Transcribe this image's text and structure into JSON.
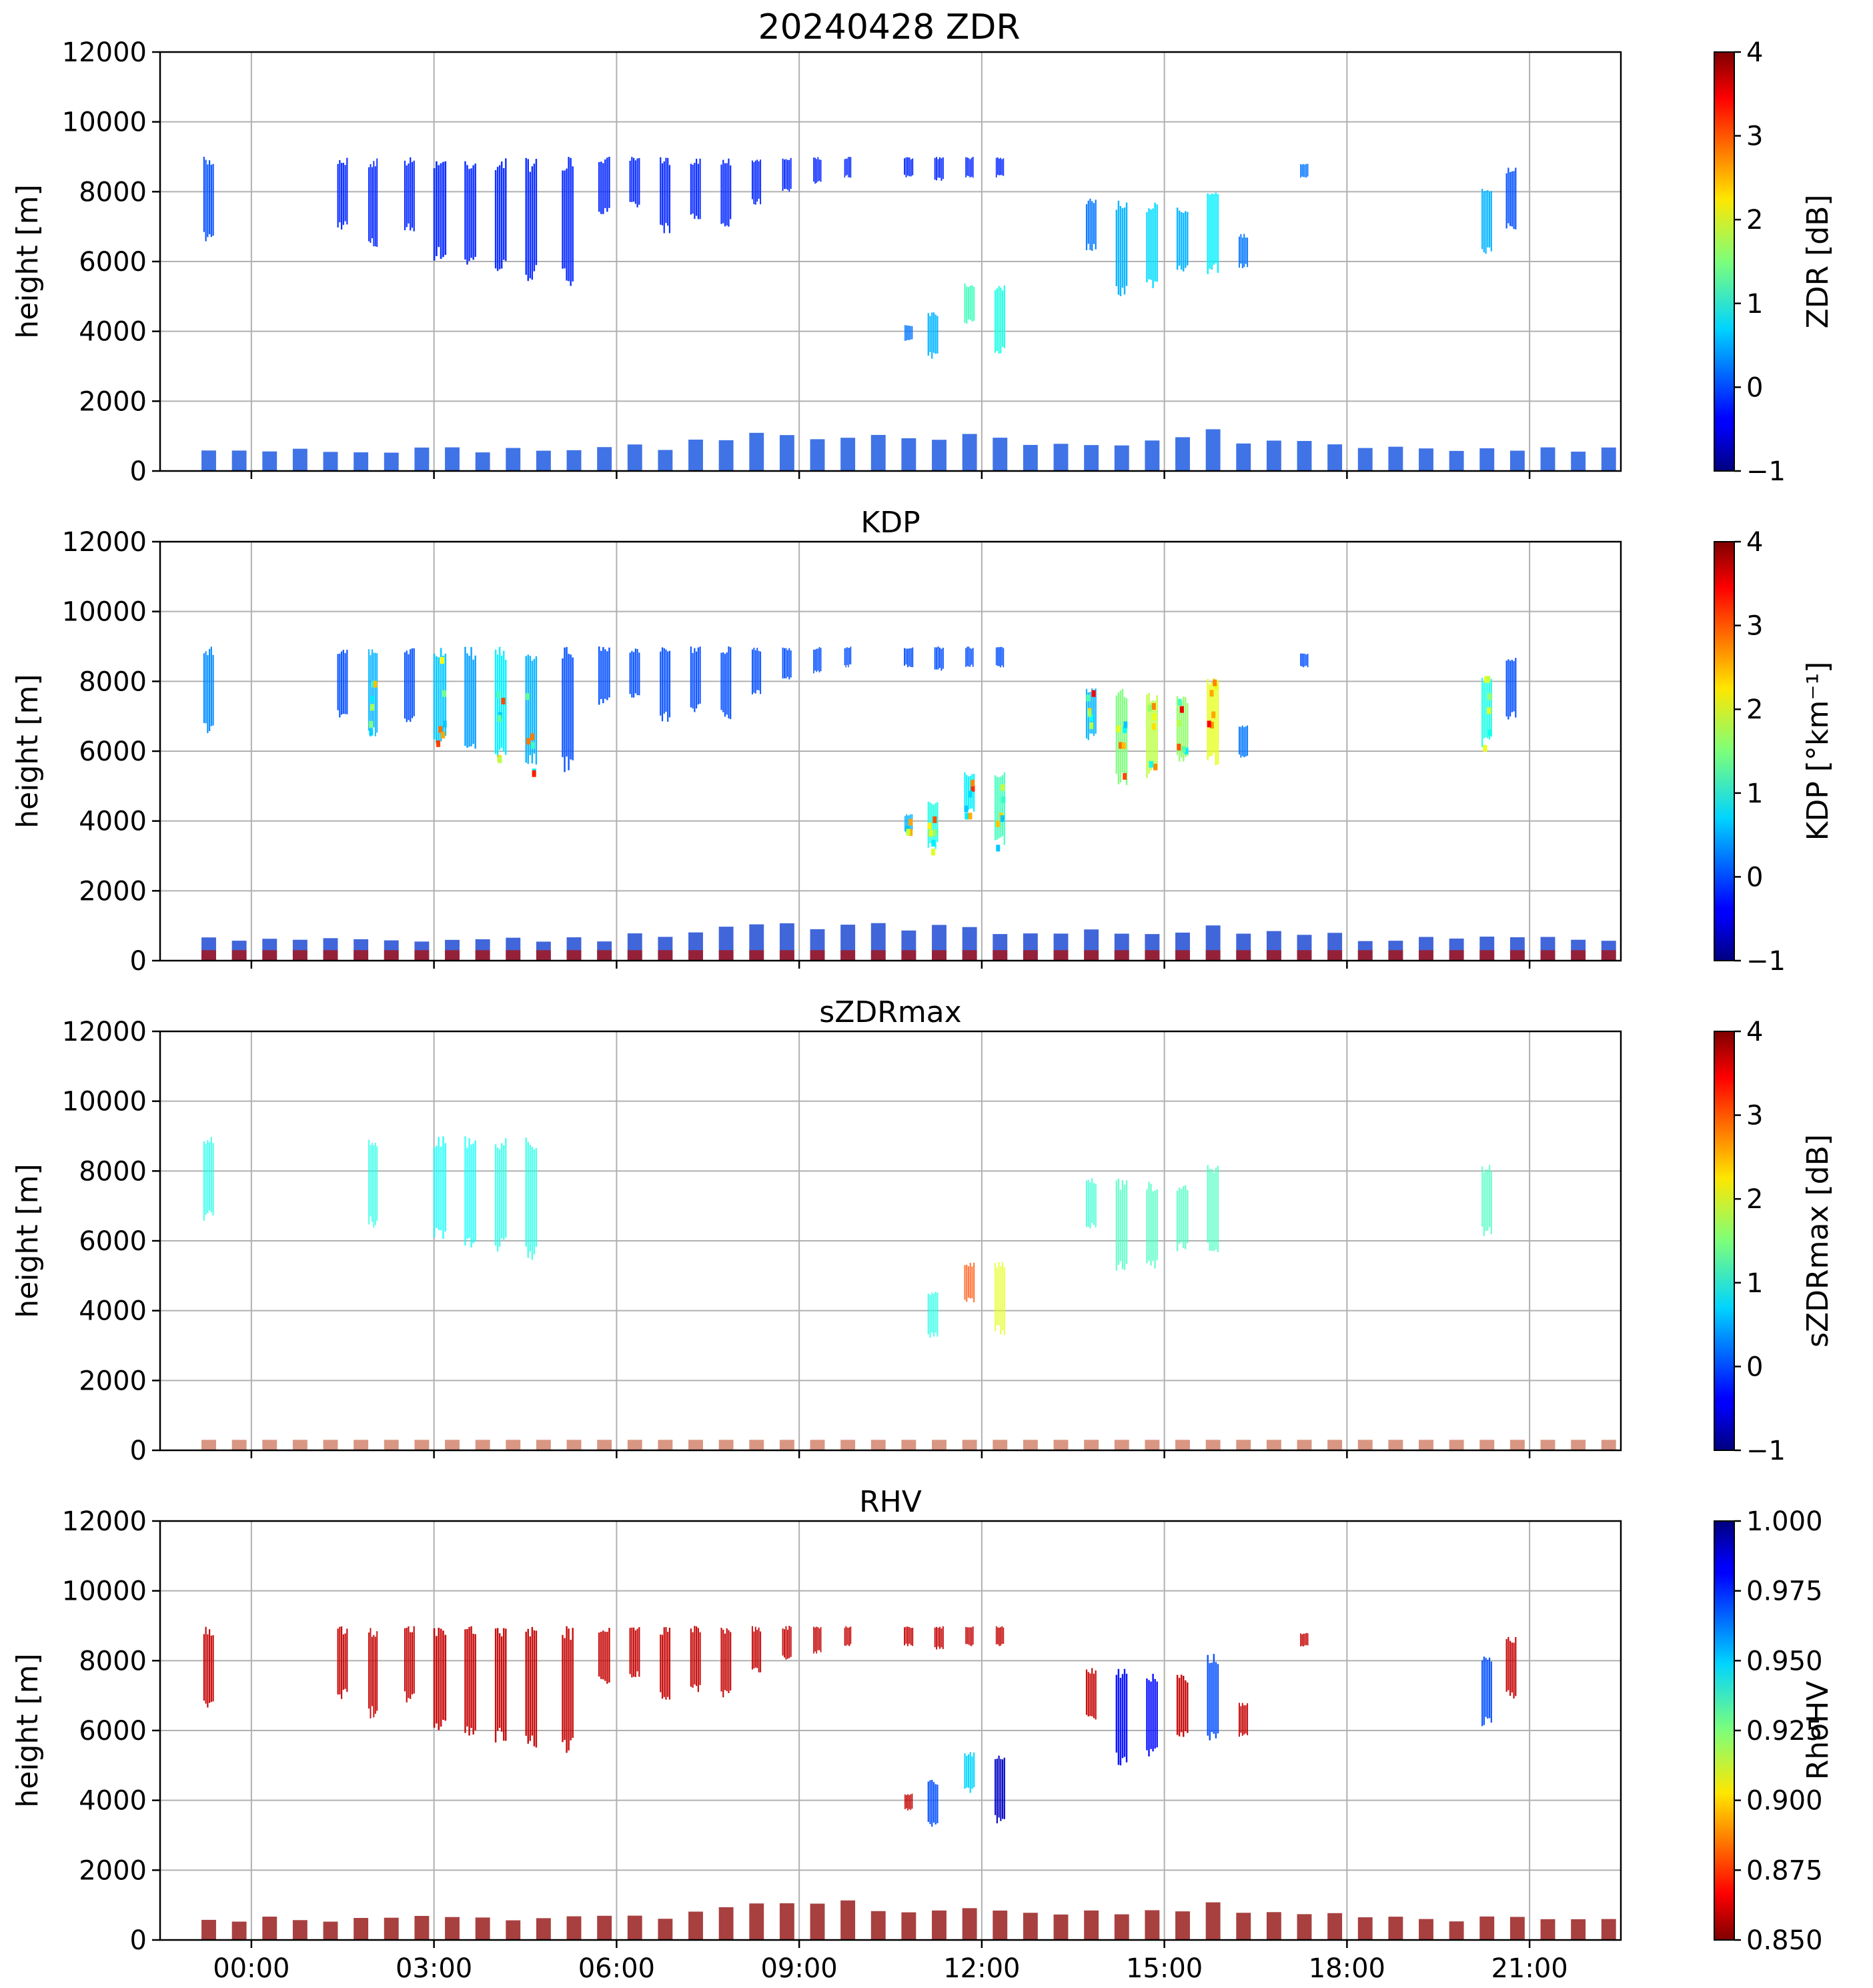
{
  "chart_data": {
    "type": "heatmap",
    "figure_title": "20240428 ZDR",
    "shared_x": {
      "unit": "hours",
      "range": [
        -1.5,
        22.5
      ],
      "ticks": [
        0,
        3,
        6,
        9,
        12,
        15,
        18,
        21
      ],
      "tick_labels": [
        "00:00",
        "03:00",
        "06:00",
        "09:00",
        "12:00",
        "15:00",
        "18:00",
        "21:00"
      ]
    },
    "panels": [
      {
        "key": "zdr",
        "title": "",
        "ylabel": "height [m]",
        "ylim": [
          0,
          12000
        ],
        "yticks": [
          0,
          2000,
          4000,
          6000,
          8000,
          10000,
          12000
        ],
        "ytick_labels": [
          "0",
          "2000",
          "4000",
          "6000",
          "8000",
          "10000",
          "12000"
        ],
        "colorbar": {
          "label": "ZDR [dB]",
          "range": [
            -1,
            4
          ],
          "ticks": [
            -1,
            0,
            1,
            2,
            3,
            4
          ],
          "tick_labels": [
            "−1",
            "0",
            "1",
            "2",
            "3",
            "4"
          ],
          "cmap": "jet"
        }
      },
      {
        "key": "kdp",
        "title": "KDP",
        "ylabel": "height [m]",
        "ylim": [
          0,
          12000
        ],
        "yticks": [
          0,
          2000,
          4000,
          6000,
          8000,
          10000,
          12000
        ],
        "ytick_labels": [
          "0",
          "2000",
          "4000",
          "6000",
          "8000",
          "10000",
          "12000"
        ],
        "colorbar": {
          "label": "KDP [°km⁻¹]",
          "range": [
            -1,
            4
          ],
          "ticks": [
            -1,
            0,
            1,
            2,
            3,
            4
          ],
          "tick_labels": [
            "−1",
            "0",
            "1",
            "2",
            "3",
            "4"
          ],
          "cmap": "jet"
        }
      },
      {
        "key": "szdrmax",
        "title": "sZDRmax",
        "ylabel": "height [m]",
        "ylim": [
          0,
          12000
        ],
        "yticks": [
          0,
          2000,
          4000,
          6000,
          8000,
          10000,
          12000
        ],
        "ytick_labels": [
          "0",
          "2000",
          "4000",
          "6000",
          "8000",
          "10000",
          "12000"
        ],
        "colorbar": {
          "label": "sZDRmax [dB]",
          "range": [
            -1,
            4
          ],
          "ticks": [
            -1,
            0,
            1,
            2,
            3,
            4
          ],
          "tick_labels": [
            "−1",
            "0",
            "1",
            "2",
            "3",
            "4"
          ],
          "cmap": "jet"
        }
      },
      {
        "key": "rhv",
        "title": "RHV",
        "ylabel": "height [m]",
        "ylim": [
          0,
          12000
        ],
        "yticks": [
          0,
          2000,
          4000,
          6000,
          8000,
          10000,
          12000
        ],
        "ytick_labels": [
          "0",
          "2000",
          "4000",
          "6000",
          "8000",
          "10000",
          "12000"
        ],
        "colorbar": {
          "label": "RhoHV",
          "range": [
            0.85,
            1.0
          ],
          "ticks": [
            0.85,
            0.875,
            0.9,
            0.925,
            0.95,
            0.975,
            1.0
          ],
          "tick_labels": [
            "0.850",
            "0.875",
            "0.900",
            "0.925",
            "0.950",
            "0.975",
            "1.000"
          ],
          "cmap": "jet_r"
        }
      }
    ],
    "upper_echoes": [
      {
        "t": -0.7,
        "w": 0.18,
        "top": 9000,
        "base": 6500,
        "zdr": 0.0,
        "kdp": 0.3,
        "sz": 1.0,
        "rhv": 0.86
      },
      {
        "t": 1.5,
        "w": 0.18,
        "top": 9000,
        "base": 6900,
        "zdr": -0.2,
        "kdp": 0.0,
        "sz": null,
        "rhv": 0.86
      },
      {
        "t": 2.0,
        "w": 0.16,
        "top": 9000,
        "base": 6300,
        "zdr": -0.2,
        "kdp": 0.5,
        "sz": 1.0,
        "rhv": 0.86
      },
      {
        "t": 2.6,
        "w": 0.18,
        "top": 9000,
        "base": 6800,
        "zdr": -0.2,
        "kdp": 0.0,
        "sz": null,
        "rhv": 0.86
      },
      {
        "t": 3.1,
        "w": 0.22,
        "top": 9000,
        "base": 6000,
        "zdr": -0.2,
        "kdp": 0.6,
        "sz": 0.9,
        "rhv": 0.86
      },
      {
        "t": 3.6,
        "w": 0.2,
        "top": 9000,
        "base": 5800,
        "zdr": -0.2,
        "kdp": 0.4,
        "sz": 0.9,
        "rhv": 0.86
      },
      {
        "t": 4.1,
        "w": 0.2,
        "top": 9000,
        "base": 5600,
        "zdr": -0.2,
        "kdp": 0.8,
        "sz": 1.0,
        "rhv": 0.86
      },
      {
        "t": 4.6,
        "w": 0.2,
        "top": 9000,
        "base": 5400,
        "zdr": -0.2,
        "kdp": 0.5,
        "sz": 1.0,
        "rhv": 0.86
      },
      {
        "t": 5.2,
        "w": 0.2,
        "top": 9000,
        "base": 5300,
        "zdr": -0.2,
        "kdp": 0.0,
        "sz": null,
        "rhv": 0.86
      },
      {
        "t": 5.8,
        "w": 0.2,
        "top": 9000,
        "base": 7300,
        "zdr": -0.2,
        "kdp": 0.0,
        "sz": null,
        "rhv": 0.86
      },
      {
        "t": 6.3,
        "w": 0.18,
        "top": 9000,
        "base": 7500,
        "zdr": -0.2,
        "kdp": 0.0,
        "sz": null,
        "rhv": 0.86
      },
      {
        "t": 6.8,
        "w": 0.18,
        "top": 9000,
        "base": 6800,
        "zdr": -0.2,
        "kdp": 0.0,
        "sz": null,
        "rhv": 0.86
      },
      {
        "t": 7.3,
        "w": 0.18,
        "top": 9000,
        "base": 7100,
        "zdr": -0.2,
        "kdp": 0.0,
        "sz": null,
        "rhv": 0.86
      },
      {
        "t": 7.8,
        "w": 0.18,
        "top": 9000,
        "base": 6900,
        "zdr": -0.2,
        "kdp": 0.0,
        "sz": null,
        "rhv": 0.86
      },
      {
        "t": 8.3,
        "w": 0.16,
        "top": 9000,
        "base": 7600,
        "zdr": -0.2,
        "kdp": 0.0,
        "sz": null,
        "rhv": 0.86
      },
      {
        "t": 8.8,
        "w": 0.16,
        "top": 9000,
        "base": 8000,
        "zdr": -0.2,
        "kdp": 0.0,
        "sz": null,
        "rhv": 0.86
      },
      {
        "t": 9.3,
        "w": 0.14,
        "top": 9000,
        "base": 8200,
        "zdr": -0.2,
        "kdp": 0.0,
        "sz": null,
        "rhv": 0.86
      },
      {
        "t": 9.8,
        "w": 0.12,
        "top": 9000,
        "base": 8400,
        "zdr": -0.2,
        "kdp": 0.0,
        "sz": null,
        "rhv": 0.86
      },
      {
        "t": 10.8,
        "w": 0.16,
        "top": 9000,
        "base": 8400,
        "zdr": -0.2,
        "kdp": 0.0,
        "sz": null,
        "rhv": 0.86
      },
      {
        "t": 11.3,
        "w": 0.16,
        "top": 9000,
        "base": 8300,
        "zdr": -0.2,
        "kdp": 0.0,
        "sz": null,
        "rhv": 0.86
      },
      {
        "t": 11.8,
        "w": 0.14,
        "top": 9000,
        "base": 8400,
        "zdr": -0.2,
        "kdp": 0.0,
        "sz": null,
        "rhv": 0.86
      },
      {
        "t": 12.3,
        "w": 0.14,
        "top": 9000,
        "base": 8400,
        "zdr": -0.2,
        "kdp": 0.0,
        "sz": null,
        "rhv": 0.86
      },
      {
        "t": 10.8,
        "w": 0.14,
        "top": 4200,
        "base": 3700,
        "zdr": 0.2,
        "kdp": 0.5,
        "sz": null,
        "rhv": 0.86
      },
      {
        "t": 11.2,
        "w": 0.18,
        "top": 4600,
        "base": 3200,
        "zdr": 0.5,
        "kdp": 1.0,
        "sz": 1.0,
        "rhv": 0.97
      },
      {
        "t": 11.8,
        "w": 0.18,
        "top": 5400,
        "base": 4200,
        "zdr": 1.2,
        "kdp": 0.8,
        "sz": 3.0,
        "rhv": 0.95
      },
      {
        "t": 12.3,
        "w": 0.18,
        "top": 5400,
        "base": 3300,
        "zdr": 1.0,
        "kdp": 1.2,
        "sz": 2.0,
        "rhv": 0.99
      },
      {
        "t": 13.8,
        "w": 0.18,
        "top": 7800,
        "base": 6300,
        "zdr": 0.2,
        "kdp": 0.5,
        "sz": 1.1,
        "rhv": 0.86
      },
      {
        "t": 14.3,
        "w": 0.2,
        "top": 7800,
        "base": 5000,
        "zdr": 0.5,
        "kdp": 1.5,
        "sz": 1.2,
        "rhv": 0.98
      },
      {
        "t": 14.8,
        "w": 0.2,
        "top": 7700,
        "base": 5200,
        "zdr": 0.7,
        "kdp": 1.8,
        "sz": 1.2,
        "rhv": 0.98
      },
      {
        "t": 15.3,
        "w": 0.2,
        "top": 7600,
        "base": 5700,
        "zdr": 0.5,
        "kdp": 1.6,
        "sz": 1.2,
        "rhv": 0.86
      },
      {
        "t": 15.8,
        "w": 0.2,
        "top": 8200,
        "base": 5600,
        "zdr": 0.8,
        "kdp": 2.0,
        "sz": 1.2,
        "rhv": 0.97
      },
      {
        "t": 16.3,
        "w": 0.16,
        "top": 6800,
        "base": 5800,
        "zdr": 0.2,
        "kdp": 0.2,
        "sz": null,
        "rhv": 0.86
      },
      {
        "t": 17.3,
        "w": 0.14,
        "top": 8800,
        "base": 8400,
        "zdr": 0.2,
        "kdp": 0.0,
        "sz": null,
        "rhv": 0.86
      },
      {
        "t": 20.3,
        "w": 0.18,
        "top": 8200,
        "base": 6100,
        "zdr": 0.5,
        "kdp": 1.0,
        "sz": 1.2,
        "rhv": 0.97
      },
      {
        "t": 20.7,
        "w": 0.18,
        "top": 8700,
        "base": 6900,
        "zdr": 0.0,
        "kdp": 0.0,
        "sz": null,
        "rhv": 0.86
      }
    ],
    "low_echo_tops": [
      {
        "t": -0.7,
        "top": 700
      },
      {
        "t": -0.2,
        "top": 700
      },
      {
        "t": 0.3,
        "top": 700
      },
      {
        "t": 0.8,
        "top": 700
      },
      {
        "t": 1.3,
        "top": 700
      },
      {
        "t": 1.8,
        "top": 700
      },
      {
        "t": 2.3,
        "top": 700
      },
      {
        "t": 2.8,
        "top": 700
      },
      {
        "t": 3.3,
        "top": 700
      },
      {
        "t": 3.8,
        "top": 700
      },
      {
        "t": 4.3,
        "top": 700
      },
      {
        "t": 4.8,
        "top": 700
      },
      {
        "t": 5.3,
        "top": 700
      },
      {
        "t": 5.8,
        "top": 700
      },
      {
        "t": 6.3,
        "top": 800
      },
      {
        "t": 6.8,
        "top": 800
      },
      {
        "t": 7.3,
        "top": 900
      },
      {
        "t": 7.8,
        "top": 1100
      },
      {
        "t": 8.3,
        "top": 1200
      },
      {
        "t": 8.8,
        "top": 1200
      },
      {
        "t": 9.3,
        "top": 1200
      },
      {
        "t": 9.8,
        "top": 1200
      },
      {
        "t": 10.3,
        "top": 1100
      },
      {
        "t": 10.8,
        "top": 1000
      },
      {
        "t": 11.3,
        "top": 1100
      },
      {
        "t": 11.8,
        "top": 1100
      },
      {
        "t": 12.3,
        "top": 1000
      },
      {
        "t": 12.8,
        "top": 900
      },
      {
        "t": 13.3,
        "top": 900
      },
      {
        "t": 13.8,
        "top": 900
      },
      {
        "t": 14.3,
        "top": 900
      },
      {
        "t": 14.8,
        "top": 900
      },
      {
        "t": 15.3,
        "top": 1000
      },
      {
        "t": 15.8,
        "top": 1300
      },
      {
        "t": 16.3,
        "top": 900
      },
      {
        "t": 16.8,
        "top": 900
      },
      {
        "t": 17.3,
        "top": 900
      },
      {
        "t": 17.8,
        "top": 800
      },
      {
        "t": 18.3,
        "top": 700
      },
      {
        "t": 18.8,
        "top": 700
      },
      {
        "t": 19.3,
        "top": 700
      },
      {
        "t": 19.8,
        "top": 700
      },
      {
        "t": 20.3,
        "top": 700
      },
      {
        "t": 20.8,
        "top": 700
      },
      {
        "t": 21.3,
        "top": 700
      },
      {
        "t": 21.8,
        "top": 700
      },
      {
        "t": 22.3,
        "top": 700
      }
    ]
  }
}
